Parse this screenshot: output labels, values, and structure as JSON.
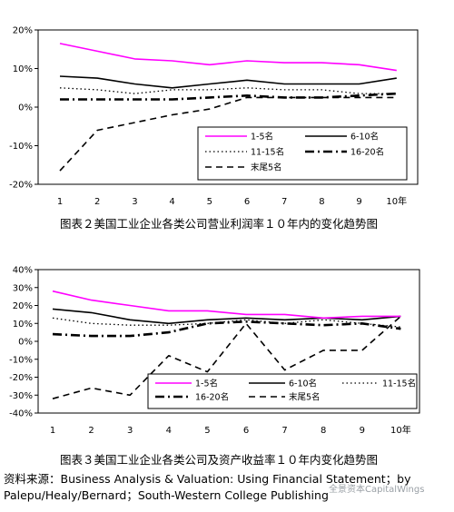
{
  "chart_data": [
    {
      "type": "line",
      "categories": [
        "1",
        "2",
        "3",
        "4",
        "5",
        "6",
        "7",
        "8",
        "9",
        "10年"
      ],
      "ylim": [
        -20,
        20
      ],
      "ytick_labels": [
        "20%",
        "10%",
        "0%",
        "-10%",
        "-20%"
      ],
      "ytick_values": [
        20,
        10,
        0,
        -10,
        -20
      ],
      "grid": false,
      "legend_position": "lower-right",
      "caption": "图表２美国工业企业各类公司营业利润率１０年内的变化趋势图",
      "series": [
        {
          "name": "1-5名",
          "values": [
            16.5,
            14.5,
            12.5,
            12.0,
            11.0,
            12.0,
            11.5,
            11.5,
            11.0,
            9.5
          ],
          "color": "#ff00ff",
          "style": "solid"
        },
        {
          "name": "6-10名",
          "values": [
            8.0,
            7.5,
            6.0,
            5.0,
            6.0,
            7.0,
            6.0,
            6.0,
            6.0,
            7.5
          ],
          "color": "#000000",
          "style": "solid"
        },
        {
          "name": "11-15名",
          "values": [
            5.0,
            4.5,
            3.5,
            4.5,
            4.5,
            5.0,
            4.5,
            4.5,
            3.5,
            3.5
          ],
          "color": "#000000",
          "style": "dotted"
        },
        {
          "name": "16-20名",
          "values": [
            2.0,
            2.0,
            2.0,
            2.0,
            2.5,
            3.0,
            2.5,
            2.5,
            3.0,
            3.5
          ],
          "color": "#000000",
          "style": "dashdot"
        },
        {
          "name": "末尾5名",
          "values": [
            -16.5,
            -6.0,
            -4.0,
            -2.0,
            -0.5,
            2.5,
            2.5,
            2.5,
            2.5,
            2.5
          ],
          "color": "#000000",
          "style": "dashed"
        }
      ]
    },
    {
      "type": "line",
      "categories": [
        "1",
        "2",
        "3",
        "4",
        "5",
        "6",
        "7",
        "8",
        "9",
        "10年"
      ],
      "ylim": [
        -40,
        40
      ],
      "ytick_labels": [
        "40%",
        "30%",
        "20%",
        "10%",
        "0%",
        "-10%",
        "-20%",
        "-30%",
        "-40%"
      ],
      "ytick_values": [
        40,
        30,
        20,
        10,
        0,
        -10,
        -20,
        -30,
        -40
      ],
      "grid": false,
      "legend_position": "bottom",
      "caption": "图表３美国工业企业各类公司及资产收益率１０年内变化趋势图",
      "series": [
        {
          "name": "1-5名",
          "values": [
            28,
            23,
            20,
            17,
            17,
            15,
            15,
            13,
            14,
            14
          ],
          "color": "#ff00ff",
          "style": "solid"
        },
        {
          "name": "6-10名",
          "values": [
            18,
            16,
            12,
            10,
            12,
            13,
            12,
            13,
            12,
            14
          ],
          "color": "#000000",
          "style": "solid"
        },
        {
          "name": "11-15名",
          "values": [
            13,
            10,
            9,
            9,
            10,
            12,
            10,
            12,
            10,
            8
          ],
          "color": "#000000",
          "style": "dotted"
        },
        {
          "name": "16-20名",
          "values": [
            4,
            3,
            3,
            5,
            10,
            11,
            10,
            9,
            10,
            7
          ],
          "color": "#000000",
          "style": "dashdot"
        },
        {
          "name": "末尾5名",
          "values": [
            -32,
            -26,
            -30,
            -8,
            -17,
            10,
            -16,
            -5,
            -5,
            14
          ],
          "color": "#000000",
          "style": "dashed"
        }
      ]
    }
  ],
  "source_text": "资料来源：Business Analysis & Valuation: Using Financial Statement；by Palepu/Healy/Bernard；South-Western College Publishing",
  "watermark_text": "全景资本CapitalWings"
}
